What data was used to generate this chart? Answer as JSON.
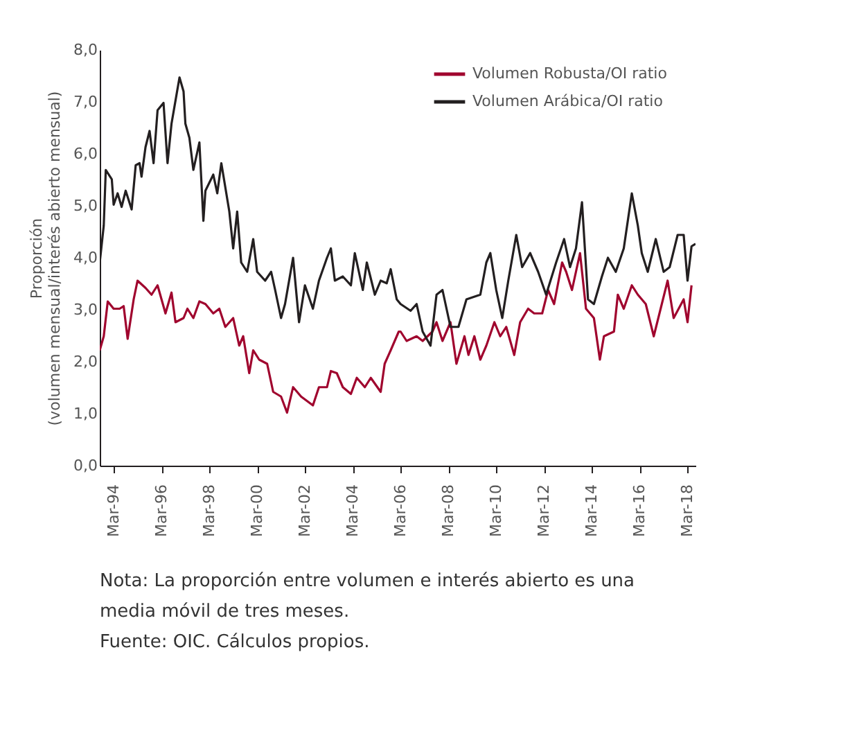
{
  "chart_data": {
    "type": "line",
    "ylabel": [
      "Proporción",
      "(volumen mensual/interés abierto mensual)"
    ],
    "xlim": [
      "1993-08",
      "2018-07"
    ],
    "xticks": [
      {
        "value": "1994-03",
        "label": "Mar-94"
      },
      {
        "value": "1996-03",
        "label": "Mar-96"
      },
      {
        "value": "1998-03",
        "label": "Mar-98"
      },
      {
        "value": "2000-03",
        "label": "Mar-00"
      },
      {
        "value": "2002-03",
        "label": "Mar-02"
      },
      {
        "value": "2004-03",
        "label": "Mar-04"
      },
      {
        "value": "2006-03",
        "label": "Mar-06"
      },
      {
        "value": "2008-03",
        "label": "Mar-08"
      },
      {
        "value": "2010-03",
        "label": "Mar-10"
      },
      {
        "value": "2012-03",
        "label": "Mar-12"
      },
      {
        "value": "2014-03",
        "label": "Mar-14"
      },
      {
        "value": "2016-03",
        "label": "Mar-16"
      },
      {
        "value": "2018-03",
        "label": "Mar-18"
      }
    ],
    "ylim": [
      0,
      8
    ],
    "yticks": [
      {
        "value": 0,
        "label": "0,0"
      },
      {
        "value": 1,
        "label": "1,0"
      },
      {
        "value": 2,
        "label": "2,0"
      },
      {
        "value": 3,
        "label": "3,0"
      },
      {
        "value": 4,
        "label": "4,0"
      },
      {
        "value": 5,
        "label": "5,0"
      },
      {
        "value": 6,
        "label": "6,0"
      },
      {
        "value": 7,
        "label": "7,0"
      },
      {
        "value": 8,
        "label": "8,0"
      }
    ],
    "grid": false,
    "legend": "top right",
    "marker": "none",
    "line_style": "solid",
    "series": [
      {
        "name": "Volumen Robusta/OI ratio",
        "color": "#a0052e",
        "x": [
          "1993-08",
          "1993-10",
          "1993-12",
          "1994-03",
          "1994-06",
          "1994-08",
          "1994-10",
          "1995-01",
          "1995-03",
          "1995-07",
          "1995-10",
          "1996-01",
          "1996-05",
          "1996-08",
          "1996-10",
          "1997-02",
          "1997-04",
          "1997-07",
          "1997-10",
          "1998-01",
          "1998-05",
          "1998-08",
          "1998-11",
          "1999-03",
          "1999-06",
          "1999-08",
          "1999-11",
          "2000-01",
          "2000-04",
          "2000-08",
          "2000-11",
          "2001-03",
          "2001-06",
          "2001-09",
          "2002-01",
          "2002-07",
          "2002-10",
          "2003-02",
          "2003-04",
          "2003-07",
          "2003-10",
          "2004-02",
          "2004-05",
          "2004-09",
          "2004-12",
          "2005-05",
          "2005-07",
          "2005-10",
          "2006-02",
          "2006-03",
          "2006-06",
          "2006-11",
          "2007-02",
          "2007-07",
          "2007-09",
          "2007-12",
          "2008-04",
          "2008-07",
          "2008-11",
          "2009-01",
          "2009-04",
          "2009-07",
          "2009-10",
          "2010-02",
          "2010-05",
          "2010-08",
          "2010-12",
          "2011-03",
          "2011-07",
          "2011-10",
          "2012-02",
          "2012-05",
          "2012-08",
          "2012-12",
          "2013-02",
          "2013-05",
          "2013-09",
          "2013-12",
          "2014-04",
          "2014-07",
          "2014-09",
          "2015-02",
          "2015-04",
          "2015-07",
          "2015-11",
          "2016-02",
          "2016-06",
          "2016-10",
          "2017-02",
          "2017-05",
          "2017-08",
          "2018-01",
          "2018-03",
          "2018-05"
        ],
        "values": [
          2.22,
          2.49,
          3.16,
          3.02,
          3.02,
          3.07,
          2.44,
          3.2,
          3.56,
          3.42,
          3.29,
          3.47,
          2.93,
          3.33,
          2.76,
          2.84,
          3.02,
          2.84,
          3.16,
          3.11,
          2.93,
          3.02,
          2.67,
          2.84,
          2.31,
          2.49,
          1.78,
          2.22,
          2.04,
          1.96,
          1.42,
          1.33,
          1.02,
          1.51,
          1.33,
          1.16,
          1.51,
          1.51,
          1.82,
          1.78,
          1.51,
          1.38,
          1.69,
          1.51,
          1.69,
          1.42,
          1.96,
          2.22,
          2.58,
          2.58,
          2.4,
          2.49,
          2.4,
          2.58,
          2.76,
          2.4,
          2.76,
          1.96,
          2.49,
          2.13,
          2.49,
          2.04,
          2.31,
          2.76,
          2.49,
          2.67,
          2.13,
          2.76,
          3.02,
          2.93,
          2.93,
          3.38,
          3.11,
          3.91,
          3.73,
          3.38,
          4.09,
          3.02,
          2.84,
          2.04,
          2.49,
          2.58,
          3.29,
          3.02,
          3.47,
          3.29,
          3.11,
          2.49,
          3.11,
          3.56,
          2.84,
          3.2,
          2.76,
          3.47
        ]
      },
      {
        "name": "Volumen Arábica/OI ratio",
        "color": "#231f20",
        "x": [
          "1993-08",
          "1993-10",
          "1993-11",
          "1994-02",
          "1994-03",
          "1994-05",
          "1994-07",
          "1994-09",
          "1994-12",
          "1995-02",
          "1995-04",
          "1995-05",
          "1995-07",
          "1995-09",
          "1995-11",
          "1996-01",
          "1996-04",
          "1996-06",
          "1996-08",
          "1996-12",
          "1997-02",
          "1997-03",
          "1997-05",
          "1997-07",
          "1997-10",
          "1997-12",
          "1998-01",
          "1998-05",
          "1998-07",
          "1998-09",
          "1999-01",
          "1999-03",
          "1999-05",
          "1999-07",
          "1999-10",
          "2000-01",
          "2000-03",
          "2000-07",
          "2000-10",
          "2000-12",
          "2001-03",
          "2001-05",
          "2001-09",
          "2001-12",
          "2002-03",
          "2002-07",
          "2002-10",
          "2003-02",
          "2003-04",
          "2003-06",
          "2003-10",
          "2004-02",
          "2004-04",
          "2004-08",
          "2004-10",
          "2005-02",
          "2005-05",
          "2005-08",
          "2005-10",
          "2006-01",
          "2006-03",
          "2006-08",
          "2006-11",
          "2007-02",
          "2007-06",
          "2007-09",
          "2007-12",
          "2008-04",
          "2008-08",
          "2008-12",
          "2009-07",
          "2009-10",
          "2009-12",
          "2010-03",
          "2010-06",
          "2010-09",
          "2011-01",
          "2011-04",
          "2011-08",
          "2011-12",
          "2012-04",
          "2012-09",
          "2013-01",
          "2013-04",
          "2013-07",
          "2013-10",
          "2014-01",
          "2014-04",
          "2014-08",
          "2014-11",
          "2015-03",
          "2015-07",
          "2015-11",
          "2016-02",
          "2016-04",
          "2016-07",
          "2016-11",
          "2017-03",
          "2017-06",
          "2017-10",
          "2018-01",
          "2018-03",
          "2018-05",
          "2018-07"
        ],
        "values": [
          3.91,
          4.62,
          5.69,
          5.51,
          5.02,
          5.24,
          4.98,
          5.29,
          4.93,
          5.78,
          5.82,
          5.56,
          6.13,
          6.44,
          5.82,
          6.84,
          6.98,
          5.82,
          6.58,
          7.47,
          7.2,
          6.58,
          6.31,
          5.69,
          6.22,
          4.71,
          5.29,
          5.6,
          5.24,
          5.82,
          4.89,
          4.18,
          4.89,
          3.91,
          3.73,
          4.36,
          3.73,
          3.56,
          3.73,
          3.38,
          2.84,
          3.11,
          4.0,
          2.76,
          3.47,
          3.02,
          3.56,
          4.0,
          4.18,
          3.56,
          3.64,
          3.47,
          4.09,
          3.38,
          3.91,
          3.29,
          3.56,
          3.51,
          3.78,
          3.2,
          3.11,
          2.98,
          3.11,
          2.58,
          2.31,
          3.29,
          3.38,
          2.67,
          2.67,
          3.2,
          3.29,
          3.91,
          4.09,
          3.38,
          2.84,
          3.56,
          4.44,
          3.82,
          4.09,
          3.73,
          3.29,
          3.91,
          4.36,
          3.82,
          4.18,
          5.07,
          3.2,
          3.11,
          3.64,
          4.0,
          3.73,
          4.18,
          5.24,
          4.62,
          4.09,
          3.73,
          4.36,
          3.73,
          3.82,
          4.44,
          4.44,
          3.56,
          4.22,
          4.27
        ]
      }
    ],
    "annotations": [
      "Nota: La proporción entre volumen e interés abierto es una media móvil de tres meses.",
      "Fuente: OIC. Cálculos propios."
    ]
  }
}
